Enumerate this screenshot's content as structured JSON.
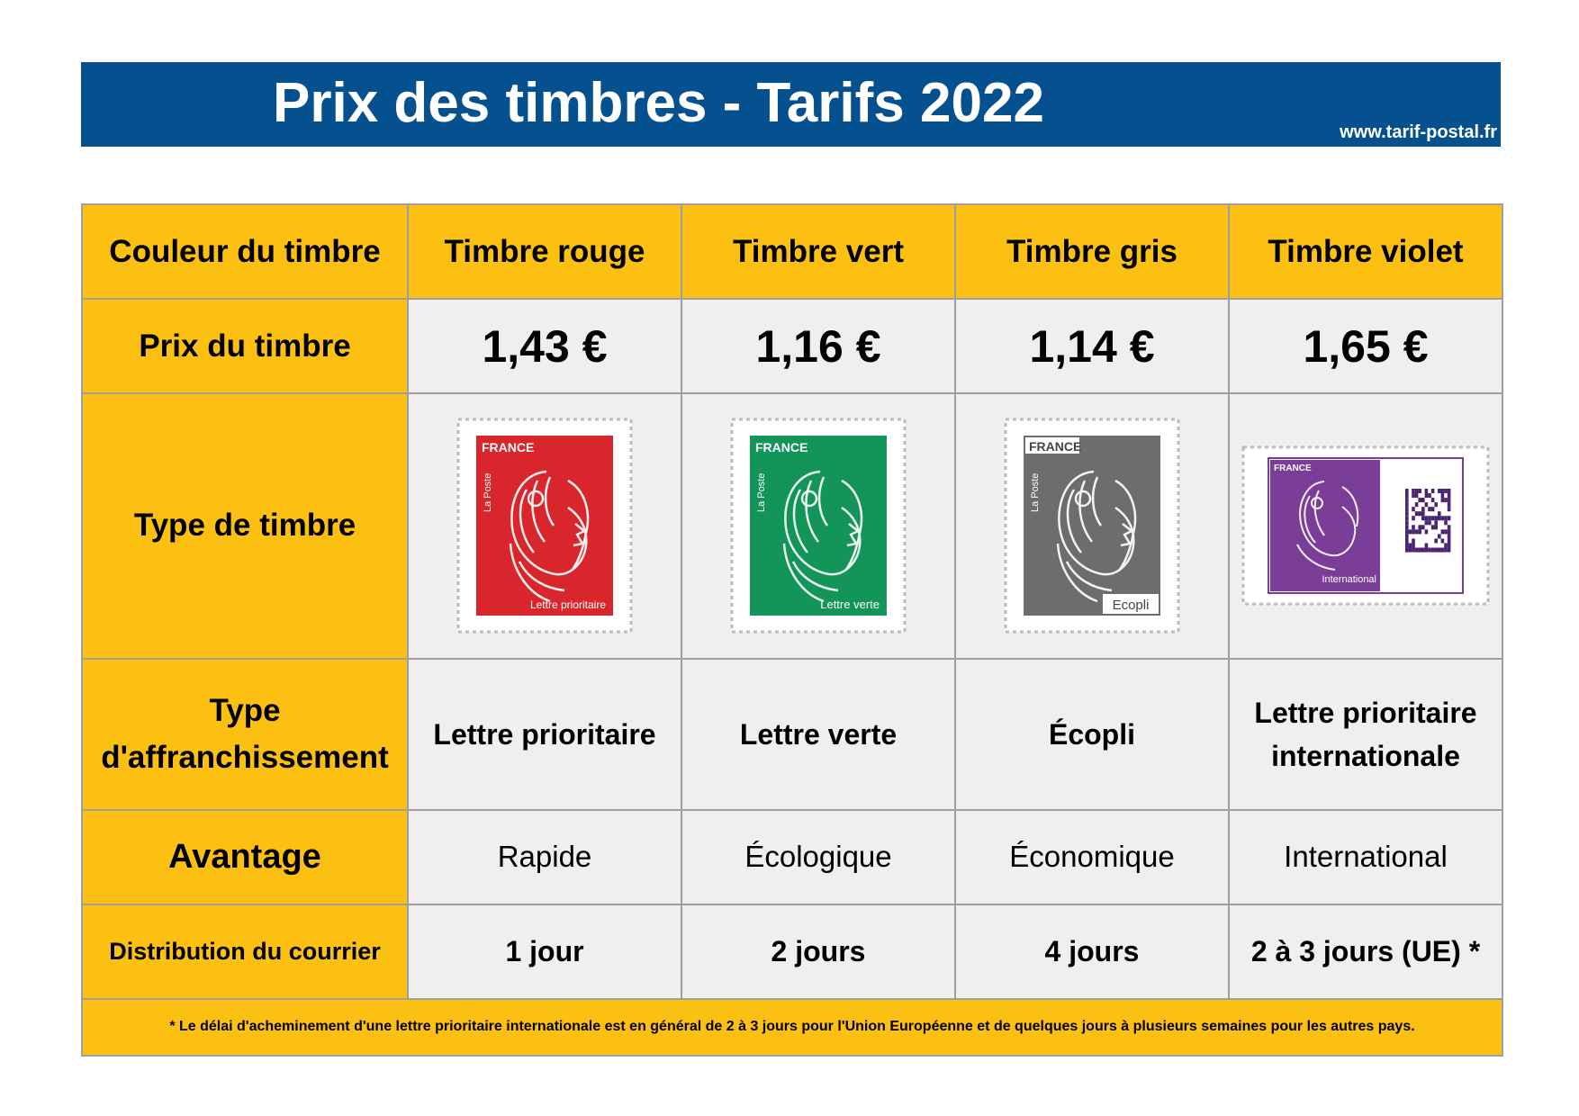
{
  "header": {
    "title": "Prix des timbres - Tarifs 2022",
    "url": "www.tarif-postal.fr"
  },
  "table": {
    "labels": {
      "couleur": "Couleur du timbre",
      "prix": "Prix du timbre",
      "type": "Type de timbre",
      "affranchissement": [
        "Type",
        "d'affranchissement"
      ],
      "avantage": "Avantage",
      "distribution": "Distribution du courrier"
    },
    "columns": [
      {
        "name": "Timbre rouge",
        "price": "1,43 €",
        "affranchissement": [
          "Lettre prioritaire"
        ],
        "avantage": "Rapide",
        "distribution": "1 jour",
        "stamp": {
          "country": "FRANCE",
          "issuer": "La Poste",
          "caption": "Lettre prioritaire",
          "color": "#d8262c",
          "icon": "marianne-red-stamp"
        }
      },
      {
        "name": "Timbre vert",
        "price": "1,16 €",
        "affranchissement": [
          "Lettre verte"
        ],
        "avantage": "Écologique",
        "distribution": "2 jours",
        "stamp": {
          "country": "FRANCE",
          "issuer": "La Poste",
          "caption": "Lettre verte",
          "color": "#13955a",
          "icon": "marianne-green-stamp"
        }
      },
      {
        "name": "Timbre gris",
        "price": "1,14 €",
        "affranchissement": [
          "Écopli"
        ],
        "avantage": "Économique",
        "distribution": "4 jours",
        "stamp": {
          "country": "FRANCE",
          "issuer": "La Poste",
          "caption": "Ecopli",
          "color": "#6d6d6d",
          "icon": "marianne-grey-stamp"
        }
      },
      {
        "name": "Timbre violet",
        "price": "1,65 €",
        "affranchissement": [
          "Lettre prioritaire",
          "internationale"
        ],
        "avantage": "International",
        "distribution": "2 à 3 jours (UE) *",
        "stamp": {
          "country": "FRANCE",
          "caption": "International",
          "color": "#7a3d98",
          "icon": "marianne-violet-stamp-datamatrix"
        }
      }
    ],
    "note": "* Le délai d'acheminement d'une lettre prioritaire internationale est en général de 2 à 3 jours pour l'Union Européenne et de quelques jours à plusieurs semaines pour les autres pays."
  }
}
